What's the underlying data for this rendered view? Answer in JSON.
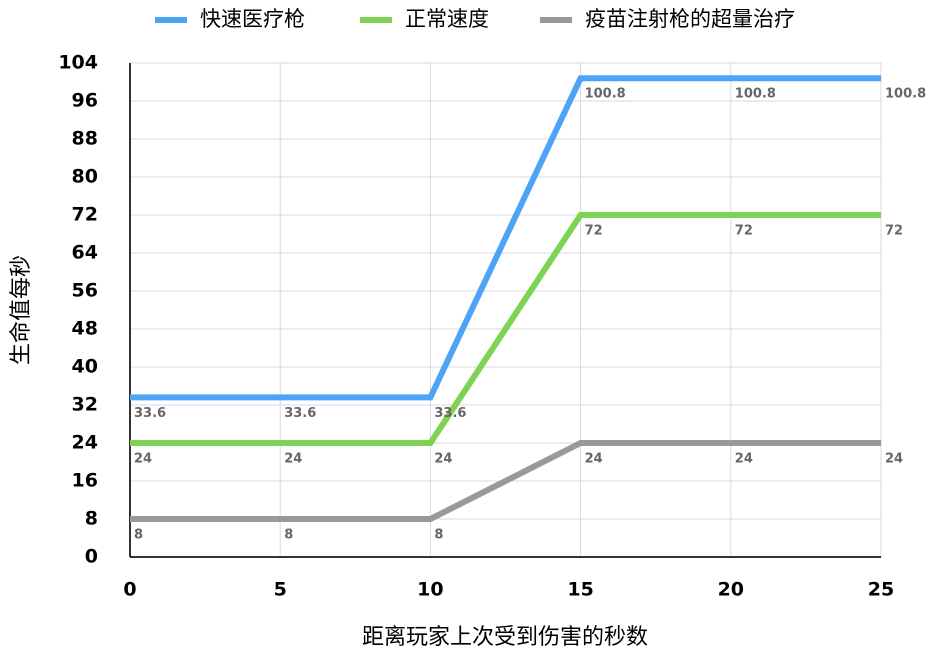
{
  "chart_data": {
    "type": "line",
    "x": [
      0,
      5,
      10,
      15,
      20,
      25
    ],
    "series": [
      {
        "name": "快速医疗枪",
        "color": "#4da3f5",
        "values": [
          33.6,
          33.6,
          33.6,
          100.8,
          100.8,
          100.8
        ]
      },
      {
        "name": "正常速度",
        "color": "#7dd353",
        "values": [
          24,
          24,
          24,
          72,
          72,
          72
        ]
      },
      {
        "name": "疫苗注射枪的超量治疗",
        "color": "#999999",
        "values": [
          8,
          8,
          8,
          24,
          24,
          24
        ]
      }
    ],
    "xlim": [
      0,
      25
    ],
    "xticks": [
      0,
      5,
      10,
      15,
      20,
      25
    ],
    "ylim": [
      0,
      104
    ],
    "yticks": [
      0,
      8,
      16,
      24,
      32,
      40,
      48,
      56,
      64,
      72,
      80,
      88,
      96,
      104
    ],
    "x_label": "距离玩家上次受到伤害的秒数",
    "y_label": "生命值每秒",
    "grid": true,
    "legend": "top"
  }
}
